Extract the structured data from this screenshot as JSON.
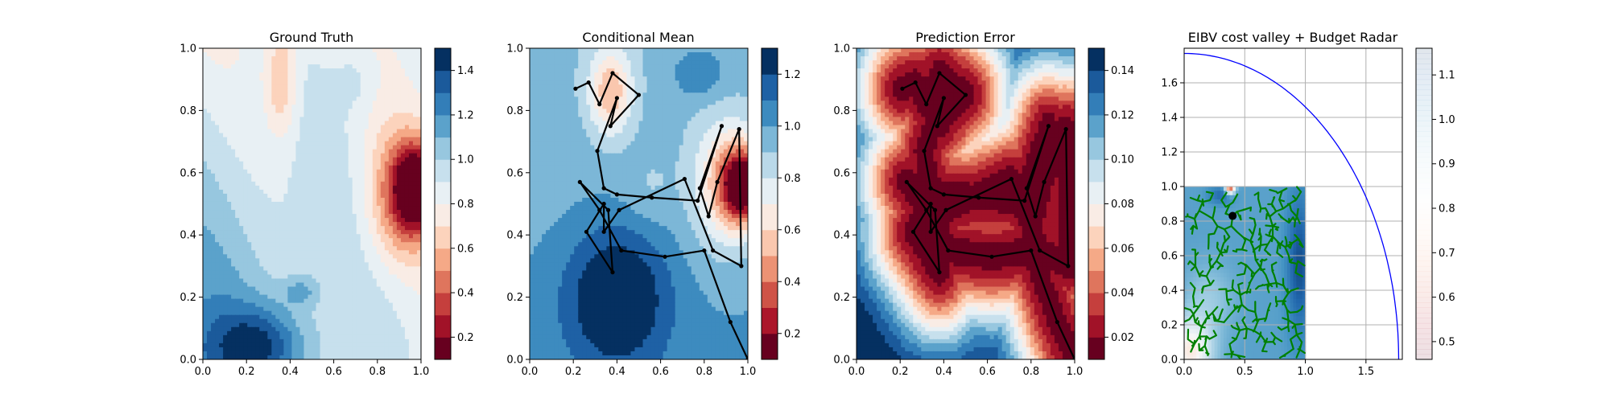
{
  "chart_data": [
    {
      "type": "heatmap",
      "title": "Ground Truth",
      "field": "ground_truth",
      "xlim": [
        0.0,
        1.0
      ],
      "ylim": [
        0.0,
        1.0
      ],
      "xticks": [
        "0.0",
        "0.2",
        "0.4",
        "0.6",
        "0.8",
        "1.0"
      ],
      "yticks": [
        "0.0",
        "0.2",
        "0.4",
        "0.6",
        "0.8",
        "1.0"
      ],
      "colormap": "RdBu",
      "levels": [
        0.1,
        0.2,
        0.3,
        0.4,
        0.5,
        0.6,
        0.7,
        0.8,
        0.9,
        1.0,
        1.1,
        1.2,
        1.3,
        1.4,
        1.5
      ],
      "colorbar_ticks": [
        "0.2",
        "0.4",
        "0.6",
        "0.8",
        "1.0",
        "1.2",
        "1.4"
      ],
      "colorbar_values": [
        0.2,
        0.4,
        0.6,
        0.8,
        1.0,
        1.2,
        1.4
      ]
    },
    {
      "type": "heatmap",
      "title": "Conditional Mean",
      "field": "conditional_mean",
      "xlim": [
        0.0,
        1.0
      ],
      "ylim": [
        0.0,
        1.0
      ],
      "xticks": [
        "0.0",
        "0.2",
        "0.4",
        "0.6",
        "0.8",
        "1.0"
      ],
      "yticks": [
        "0.0",
        "0.2",
        "0.4",
        "0.6",
        "0.8",
        "1.0"
      ],
      "colormap": "RdBu",
      "levels": [
        0.1,
        0.2,
        0.3,
        0.4,
        0.5,
        0.6,
        0.7,
        0.8,
        0.9,
        1.0,
        1.1,
        1.2,
        1.3
      ],
      "colorbar_ticks": [
        "0.2",
        "0.4",
        "0.6",
        "0.8",
        "1.0",
        "1.2"
      ],
      "colorbar_values": [
        0.2,
        0.4,
        0.6,
        0.8,
        1.0,
        1.2
      ],
      "trajectory": [
        [
          0.21,
          0.87
        ],
        [
          0.27,
          0.89
        ],
        [
          0.32,
          0.82
        ],
        [
          0.38,
          0.92
        ],
        [
          0.5,
          0.85
        ],
        [
          0.37,
          0.75
        ],
        [
          0.4,
          0.84
        ],
        [
          0.31,
          0.67
        ],
        [
          0.34,
          0.55
        ],
        [
          0.4,
          0.53
        ],
        [
          0.56,
          0.52
        ],
        [
          0.77,
          0.51
        ],
        [
          0.88,
          0.75
        ],
        [
          0.78,
          0.55
        ],
        [
          0.82,
          0.46
        ],
        [
          0.86,
          0.57
        ],
        [
          0.96,
          0.74
        ],
        [
          0.97,
          0.3
        ],
        [
          0.84,
          0.35
        ],
        [
          0.71,
          0.58
        ],
        [
          0.41,
          0.48
        ],
        [
          0.34,
          0.41
        ],
        [
          0.34,
          0.5
        ],
        [
          0.26,
          0.41
        ],
        [
          0.38,
          0.28
        ],
        [
          0.36,
          0.48
        ],
        [
          0.23,
          0.57
        ],
        [
          0.32,
          0.48
        ],
        [
          0.42,
          0.35
        ],
        [
          0.62,
          0.33
        ],
        [
          0.8,
          0.35
        ],
        [
          0.92,
          0.12
        ],
        [
          1.0,
          0.0
        ]
      ]
    },
    {
      "type": "heatmap",
      "title": "Prediction Error",
      "field": "prediction_error",
      "xlim": [
        0.0,
        1.0
      ],
      "ylim": [
        0.0,
        1.0
      ],
      "xticks": [
        "0.0",
        "0.2",
        "0.4",
        "0.6",
        "0.8",
        "1.0"
      ],
      "yticks": [
        "0.0",
        "0.2",
        "0.4",
        "0.6",
        "0.8",
        "1.0"
      ],
      "colormap": "RdBu",
      "levels": [
        0.01,
        0.02,
        0.03,
        0.04,
        0.05,
        0.06,
        0.07,
        0.08,
        0.09,
        0.1,
        0.11,
        0.12,
        0.13,
        0.14,
        0.15
      ],
      "colorbar_ticks": [
        "0.02",
        "0.04",
        "0.06",
        "0.08",
        "0.10",
        "0.12",
        "0.14"
      ],
      "colorbar_values": [
        0.02,
        0.04,
        0.06,
        0.08,
        0.1,
        0.12,
        0.14
      ],
      "trajectory_ref": 1
    },
    {
      "type": "heatmap",
      "title": "EIBV cost valley + Budget Radar",
      "field": "cost_valley",
      "xlim": [
        0.0,
        1.8
      ],
      "ylim": [
        0.0,
        1.8
      ],
      "field_extent": [
        0.0,
        1.0,
        0.0,
        1.0
      ],
      "xticks": [
        "0.0",
        "0.5",
        "1.0",
        "1.5"
      ],
      "xtick_values": [
        0.0,
        0.5,
        1.0,
        1.5
      ],
      "yticks": [
        "0.0",
        "0.2",
        "0.4",
        "0.6",
        "0.8",
        "1.0",
        "1.2",
        "1.4",
        "1.6"
      ],
      "ytick_values": [
        0.0,
        0.2,
        0.4,
        0.6,
        0.8,
        1.0,
        1.2,
        1.4,
        1.6
      ],
      "grid": true,
      "colormap": "RdBu",
      "colorbar_range": [
        0.46,
        1.16
      ],
      "colorbar_ticks": [
        "0.5",
        "0.6",
        "0.7",
        "0.8",
        "0.9",
        "1.0",
        "1.1"
      ],
      "colorbar_values": [
        0.5,
        0.6,
        0.7,
        0.8,
        0.9,
        1.0,
        1.1
      ],
      "current_location": [
        0.4,
        0.83
      ],
      "budget_radius": 1.77,
      "budget_color": "#0000ff",
      "tree_color": "#008000"
    }
  ]
}
